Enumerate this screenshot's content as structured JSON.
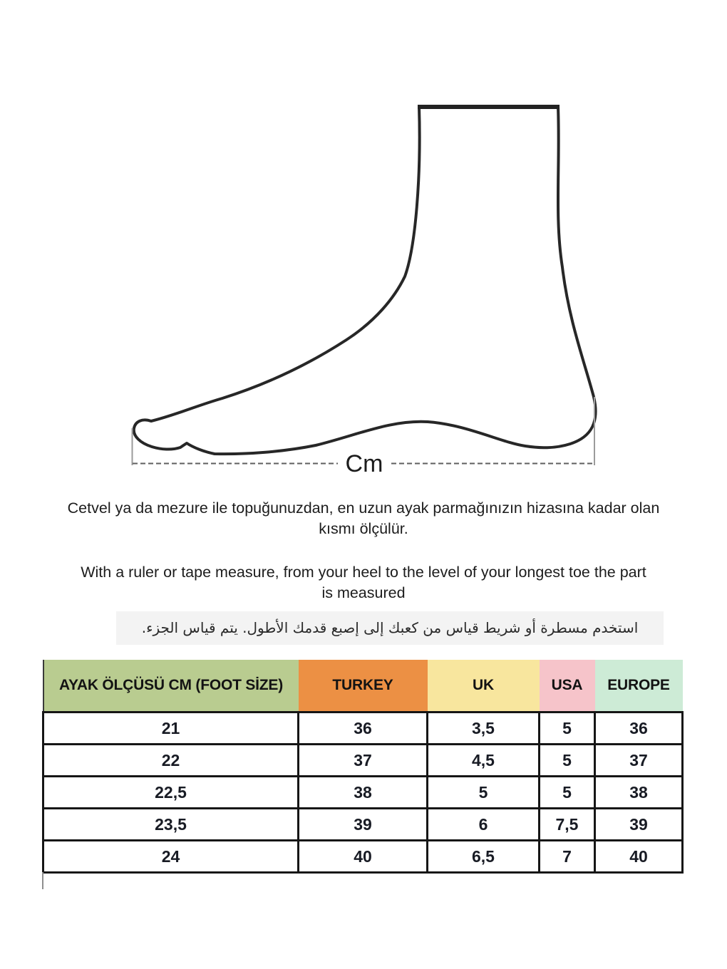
{
  "figure": {
    "cm_label": "Cm"
  },
  "instructions": {
    "turkish": "Cetvel ya da mezure ile topuğunuzdan, en uzun ayak parmağınızın hizasına kadar olan kısmı ölçülür.",
    "english": "With a ruler or tape measure, from your heel to the level of your longest toe the part is measured",
    "arabic": "استخدم مسطرة أو شريط قياس من كعبك إلى إصبع قدمك الأطول.  يتم قياس الجزء."
  },
  "size_table": {
    "columns": [
      {
        "label": "AYAK ÖLÇÜSÜ CM (FOOT SİZE)",
        "color": "#b9cc90"
      },
      {
        "label": "TURKEY",
        "color": "#ec9044"
      },
      {
        "label": "UK",
        "color": "#f8e69e"
      },
      {
        "label": "USA",
        "color": "#f6c4ca"
      },
      {
        "label": "EUROPE",
        "color": "#cdebd6"
      }
    ],
    "rows": [
      [
        "21",
        "36",
        "3,5",
        "5",
        "36"
      ],
      [
        "22",
        "37",
        "4,5",
        "5",
        "37"
      ],
      [
        "22,5",
        "38",
        "5",
        "5",
        "38"
      ],
      [
        "23,5",
        "39",
        "6",
        "7,5",
        "39"
      ],
      [
        "24",
        "40",
        "6,5",
        "7",
        "40"
      ]
    ]
  }
}
